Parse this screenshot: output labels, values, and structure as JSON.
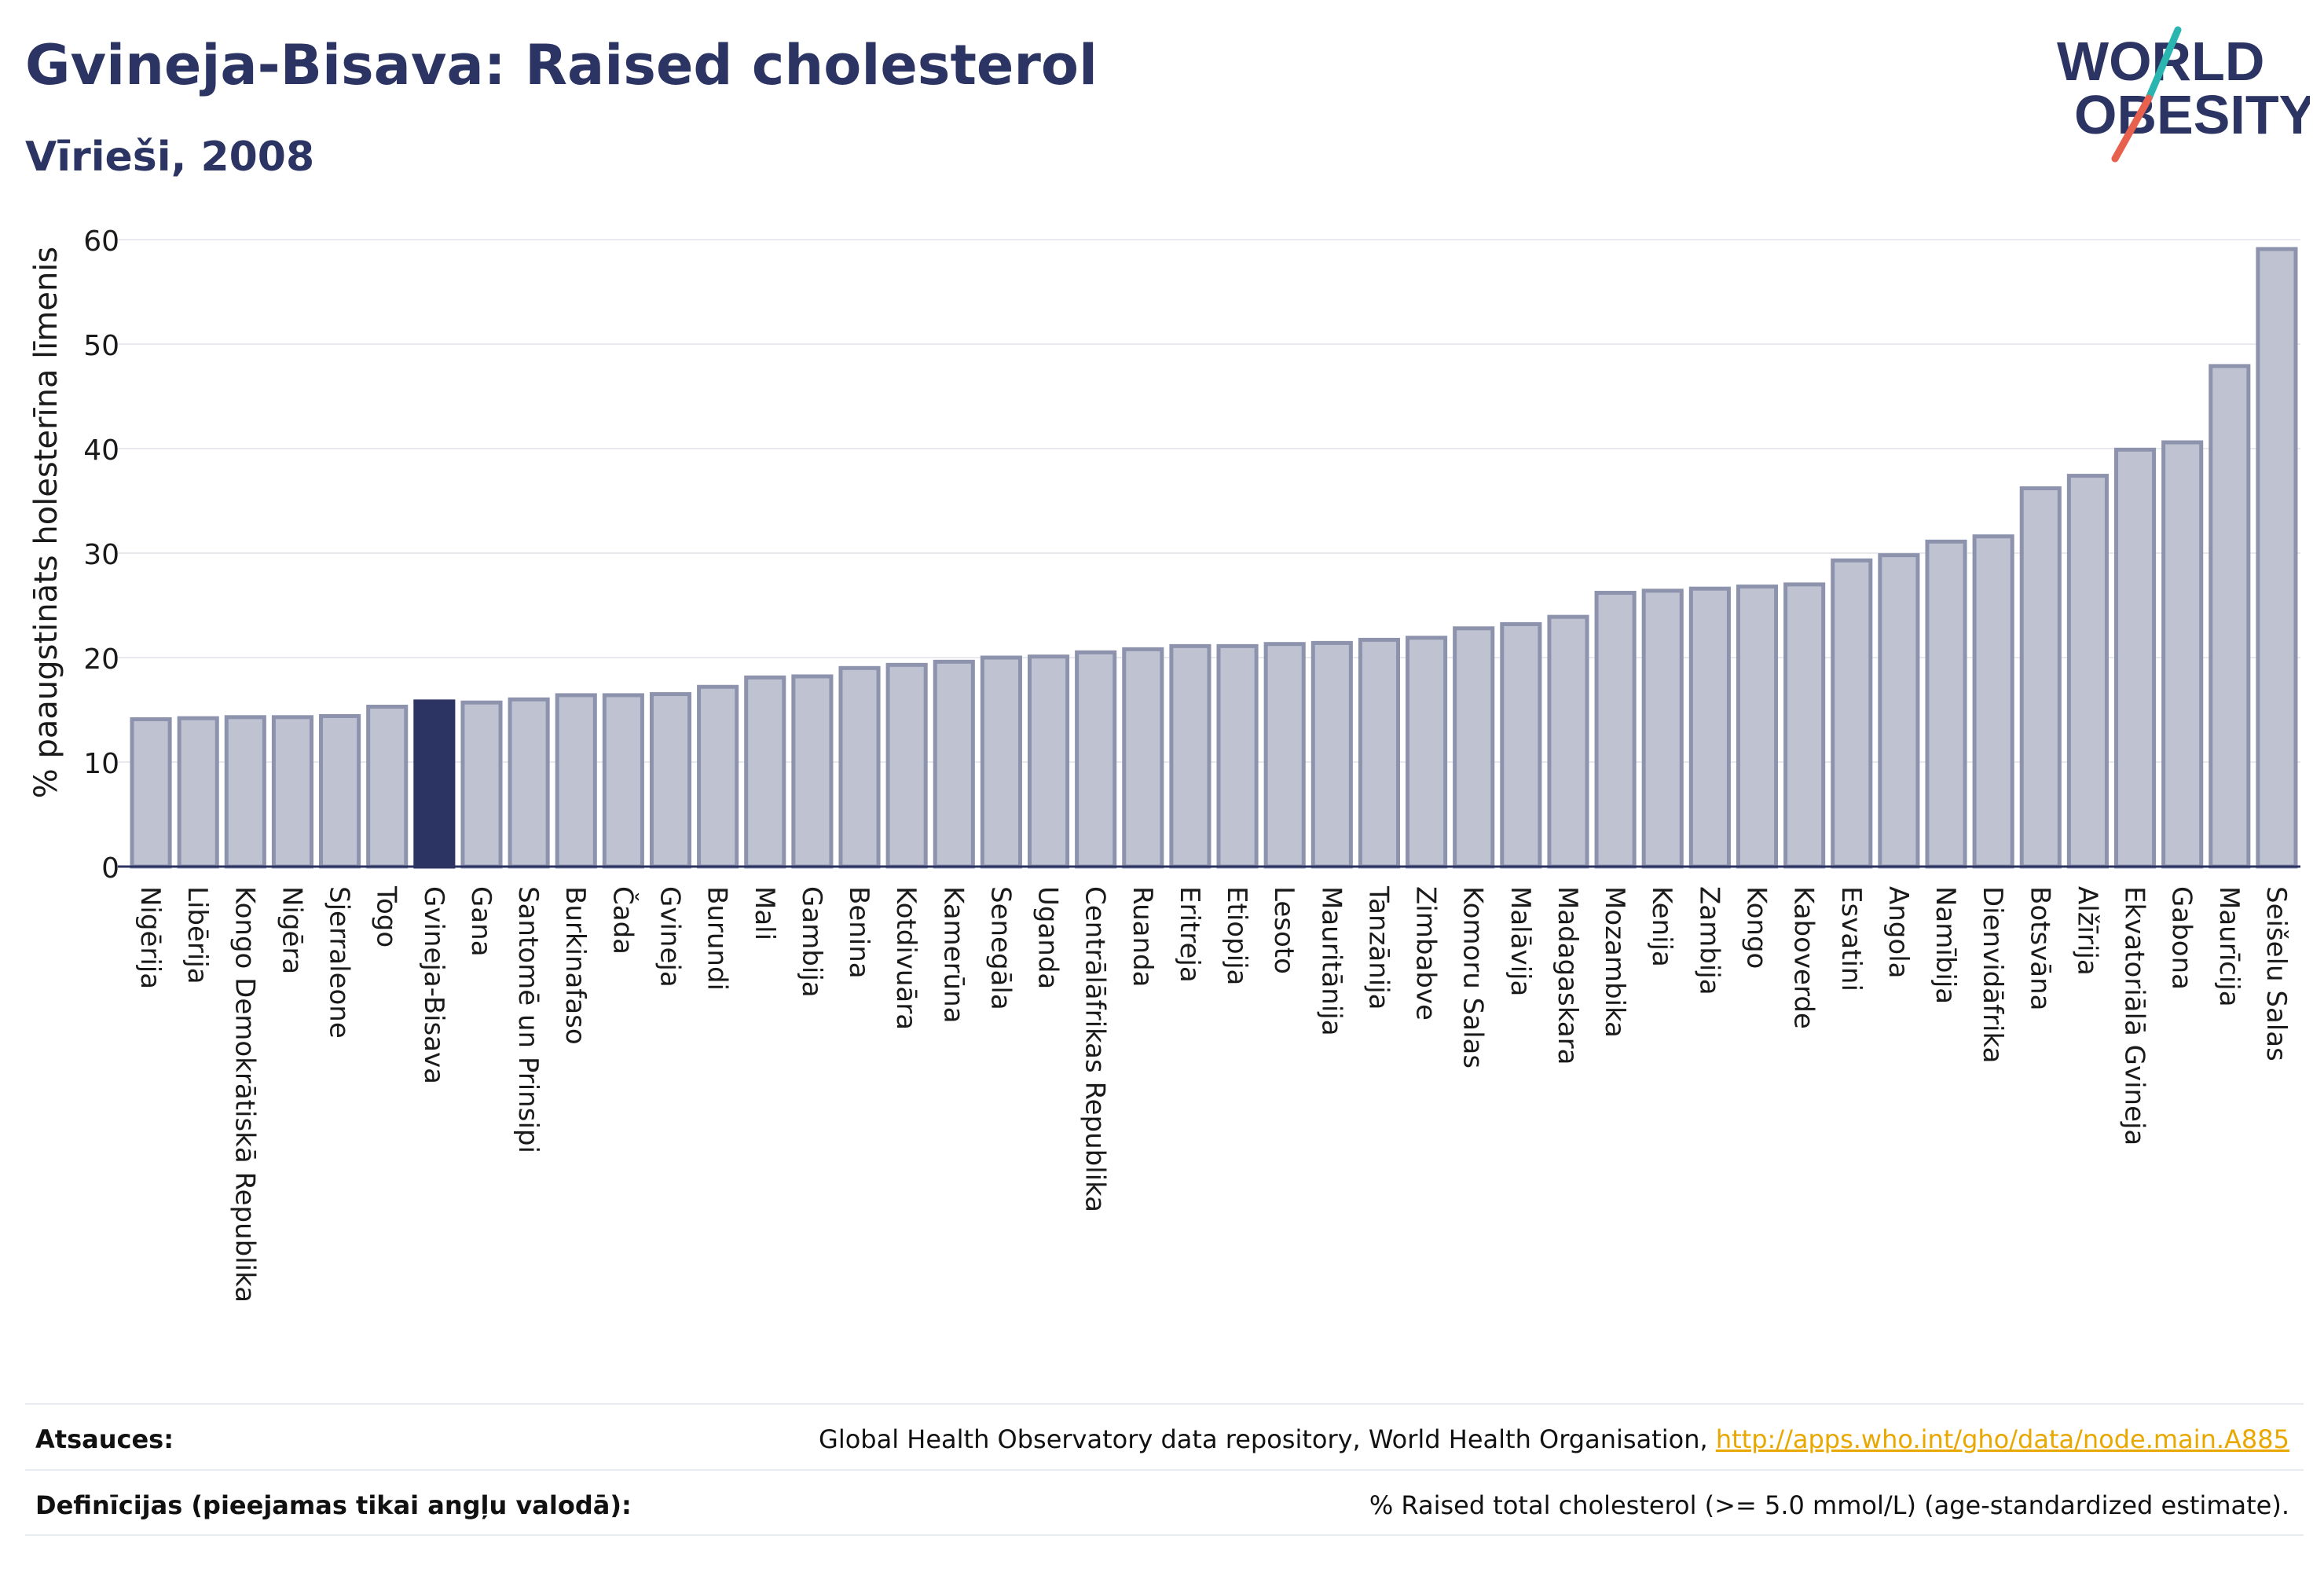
{
  "header": {
    "title": "Gvineja-Bisava: Raised cholesterol",
    "subtitle": "Vīrieši, 2008"
  },
  "logo": {
    "line1": "WORLD",
    "line2": "OBESITY",
    "brand_color": "#2b3462",
    "slash_color_top": "#2bb5b0",
    "slash_color_bottom": "#e8614f"
  },
  "chart_data": {
    "type": "bar",
    "ylabel": "% paaugstināts holesterīna līmenis",
    "xlabel": "",
    "ylim": [
      0,
      62
    ],
    "yticks": [
      0,
      10,
      20,
      30,
      40,
      50,
      60
    ],
    "grid": true,
    "highlight": "Gvineja-Bisava",
    "bar_color": "#bfc3d1",
    "bar_edge_color": "#8d93ad",
    "highlight_color": "#2b3462",
    "categories": [
      "Nigērija",
      "Libērija",
      "Kongo Demokrātiskā Republika",
      "Nigēra",
      "Sjerraleone",
      "Togo",
      "Gvineja-Bisava",
      "Gana",
      "Santomē un Prinsipi",
      "Burkinafaso",
      "Čada",
      "Gvineja",
      "Burundi",
      "Mali",
      "Gambija",
      "Benina",
      "Kotdivuāra",
      "Kamerūna",
      "Senegāla",
      "Uganda",
      "Centrālāfrikas Republika",
      "Ruanda",
      "Eritreja",
      "Etiopija",
      "Lesoto",
      "Mauritānija",
      "Tanzānija",
      "Zimbabve",
      "Komoru Salas",
      "Malāvija",
      "Madagaskara",
      "Mozambika",
      "Kenija",
      "Zambija",
      "Kongo",
      "Kaboverde",
      "Esvatini",
      "Angola",
      "Namībija",
      "Dienvidāfrika",
      "Botsvāna",
      "Alžīrija",
      "Ekvatoriālā Gvineja",
      "Gabona",
      "Maurīcija",
      "Seišelu Salas"
    ],
    "values": [
      14.1,
      14.2,
      14.3,
      14.3,
      14.4,
      15.3,
      15.8,
      15.7,
      16.0,
      16.4,
      16.4,
      16.5,
      17.2,
      18.1,
      18.2,
      19.0,
      19.3,
      19.6,
      20.0,
      20.1,
      20.5,
      20.8,
      21.1,
      21.1,
      21.3,
      21.4,
      21.7,
      21.9,
      22.8,
      23.2,
      23.9,
      26.2,
      26.4,
      26.6,
      26.8,
      27.0,
      29.3,
      29.8,
      31.1,
      31.6,
      36.2,
      37.4,
      39.9,
      40.6,
      47.9,
      59.1
    ]
  },
  "footer": {
    "sources_label": "Atsauces:",
    "sources_text": "Global Health Observatory data repository, World Health Organisation, ",
    "sources_link": "http://apps.who.int/gho/data/node.main.A885",
    "definitions_label": "Definīcijas (pieejamas tikai angļu valodā):",
    "definitions_text": "% Raised total cholesterol (>= 5.0 mmol/L) (age-standardized estimate)."
  }
}
